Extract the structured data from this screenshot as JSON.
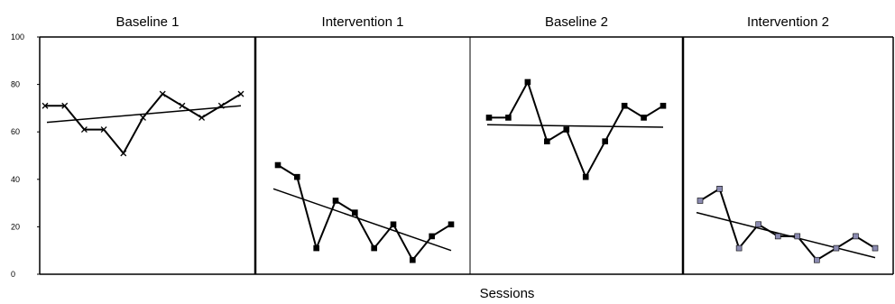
{
  "chart_data": {
    "type": "line",
    "title": "",
    "xlabel": "Sessions",
    "ylabel": "",
    "ylim": [
      0,
      100
    ],
    "yticks": [
      0,
      20,
      40,
      60,
      80,
      100
    ],
    "grid": false,
    "legend": "none",
    "phases": [
      {
        "name": "Baseline 1",
        "marker": "x",
        "marker_color": "#000000",
        "values": [
          71,
          71,
          61,
          61,
          51,
          66,
          76,
          71,
          66,
          71,
          76
        ],
        "trend": [
          64,
          71
        ]
      },
      {
        "name": "Intervention 1",
        "marker": "square",
        "marker_color": "#000000",
        "values": [
          46,
          41,
          11,
          31,
          26,
          11,
          21,
          6,
          16,
          21
        ],
        "trend": [
          36,
          10
        ]
      },
      {
        "name": "Baseline 2",
        "marker": "square",
        "marker_color": "#000000",
        "values": [
          66,
          66,
          81,
          56,
          61,
          41,
          56,
          71,
          66,
          71
        ],
        "trend": [
          63,
          62
        ]
      },
      {
        "name": "Intervention 2",
        "marker": "square",
        "marker_color": "#8a8ab0",
        "values": [
          31,
          36,
          11,
          21,
          16,
          16,
          6,
          11,
          16,
          11
        ],
        "trend": [
          26,
          7
        ]
      }
    ]
  }
}
